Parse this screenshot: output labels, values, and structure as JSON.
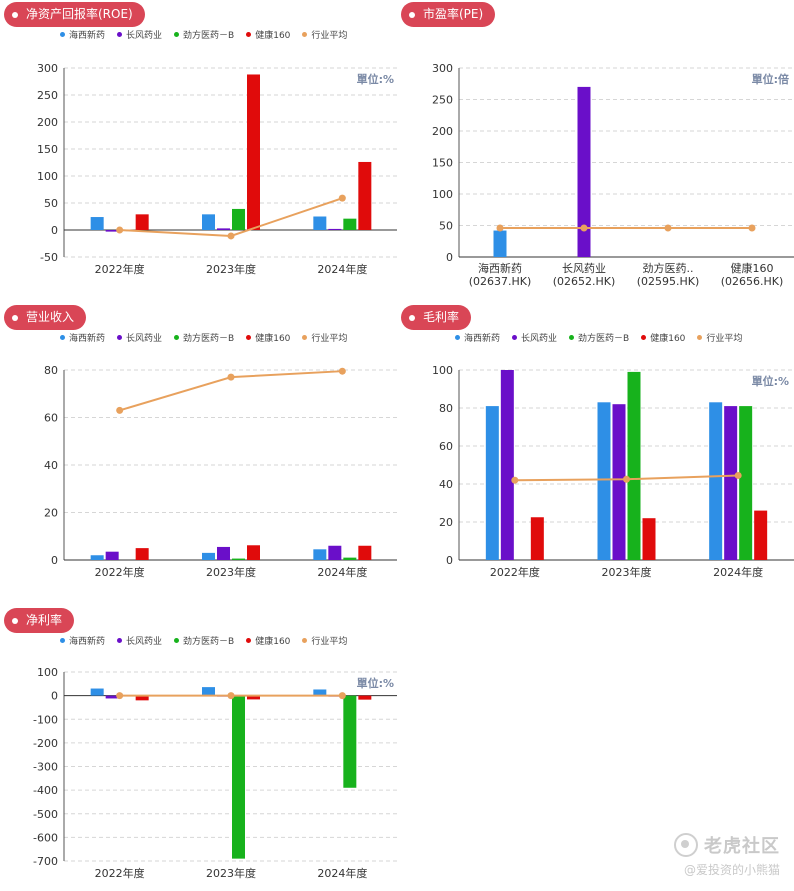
{
  "legend_labels": [
    "海西新药",
    "长风药业",
    "劲方医药－B",
    "健康160",
    "行业平均"
  ],
  "colors": {
    "haixi": "#2e8fe6",
    "changfeng": "#6a0fc9",
    "jinfang": "#17b21c",
    "jiankang": "#e00b0b",
    "avg": "#e8a15d",
    "badge": "#d94656"
  },
  "watermark": {
    "brand": "老虎社区",
    "author": "@爱投资的小熊猫"
  },
  "chart_data": [
    {
      "id": "roe",
      "title": "净资产回报率(ROE)",
      "unit": "單位:%",
      "type": "bar",
      "categories": [
        "2022年度",
        "2023年度",
        "2024年度"
      ],
      "ylim": [
        -50,
        300
      ],
      "yticks": [
        -50,
        0,
        50,
        100,
        150,
        200,
        250,
        300
      ],
      "series": [
        {
          "name": "海西新药",
          "values": [
            24,
            29,
            25
          ]
        },
        {
          "name": "长风药业",
          "values": [
            -3,
            3,
            2
          ]
        },
        {
          "name": "劲方医药－B",
          "values": [
            null,
            39,
            21
          ]
        },
        {
          "name": "健康160",
          "values": [
            29,
            288,
            126
          ]
        },
        {
          "name": "行业平均",
          "type": "line",
          "values": [
            0,
            -11,
            59
          ]
        }
      ]
    },
    {
      "id": "pe",
      "title": "市盈率(PE)",
      "unit": "單位:倍",
      "type": "bar",
      "categories": [
        "海西新药\n(02637.HK)",
        "长风药业\n(02652.HK)",
        "劲方医药..\n(02595.HK)",
        "健康160\n(02656.HK)"
      ],
      "ylim": [
        0,
        300
      ],
      "yticks": [
        0,
        50,
        100,
        150,
        200,
        250,
        300
      ],
      "values": [
        42,
        270,
        null,
        null
      ],
      "average": 46
    },
    {
      "id": "revenue",
      "title": "营业收入",
      "unit": "",
      "type": "bar",
      "categories": [
        "2022年度",
        "2023年度",
        "2024年度"
      ],
      "ylim": [
        0,
        80
      ],
      "yticks": [
        0,
        20,
        40,
        60,
        80
      ],
      "series": [
        {
          "name": "海西新药",
          "values": [
            2,
            3,
            4.5
          ]
        },
        {
          "name": "长风药业",
          "values": [
            3.5,
            5.5,
            6
          ]
        },
        {
          "name": "劲方医药－B",
          "values": [
            null,
            0.6,
            1
          ]
        },
        {
          "name": "健康160",
          "values": [
            5,
            6.2,
            6
          ]
        },
        {
          "name": "行业平均",
          "type": "line",
          "values": [
            63,
            77,
            79.5
          ]
        }
      ]
    },
    {
      "id": "gross",
      "title": "毛利率",
      "unit": "單位:%",
      "type": "bar",
      "categories": [
        "2022年度",
        "2023年度",
        "2024年度"
      ],
      "ylim": [
        0,
        100
      ],
      "yticks": [
        0,
        20,
        40,
        60,
        80,
        100
      ],
      "series": [
        {
          "name": "海西新药",
          "values": [
            81,
            83,
            83
          ]
        },
        {
          "name": "长风药业",
          "values": [
            100,
            82,
            81
          ]
        },
        {
          "name": "劲方医药－B",
          "values": [
            null,
            99,
            81
          ]
        },
        {
          "name": "健康160",
          "values": [
            22.5,
            22,
            26
          ]
        },
        {
          "name": "行业平均",
          "type": "line",
          "values": [
            42,
            42.5,
            44.5
          ]
        }
      ]
    },
    {
      "id": "net",
      "title": "净利率",
      "unit": "單位:%",
      "type": "bar",
      "categories": [
        "2022年度",
        "2023年度",
        "2024年度"
      ],
      "ylim": [
        -700,
        100
      ],
      "yticks": [
        -700,
        -600,
        -500,
        -400,
        -300,
        -200,
        -100,
        0,
        100
      ],
      "series": [
        {
          "name": "海西新药",
          "values": [
            30,
            36,
            26
          ]
        },
        {
          "name": "长风药业",
          "values": [
            -12,
            0,
            0
          ]
        },
        {
          "name": "劲方医药－B",
          "values": [
            null,
            -690,
            -390
          ]
        },
        {
          "name": "健康160",
          "values": [
            -20,
            -16,
            -17
          ]
        },
        {
          "name": "行业平均",
          "type": "line",
          "values": [
            0,
            0,
            0
          ]
        }
      ]
    }
  ]
}
